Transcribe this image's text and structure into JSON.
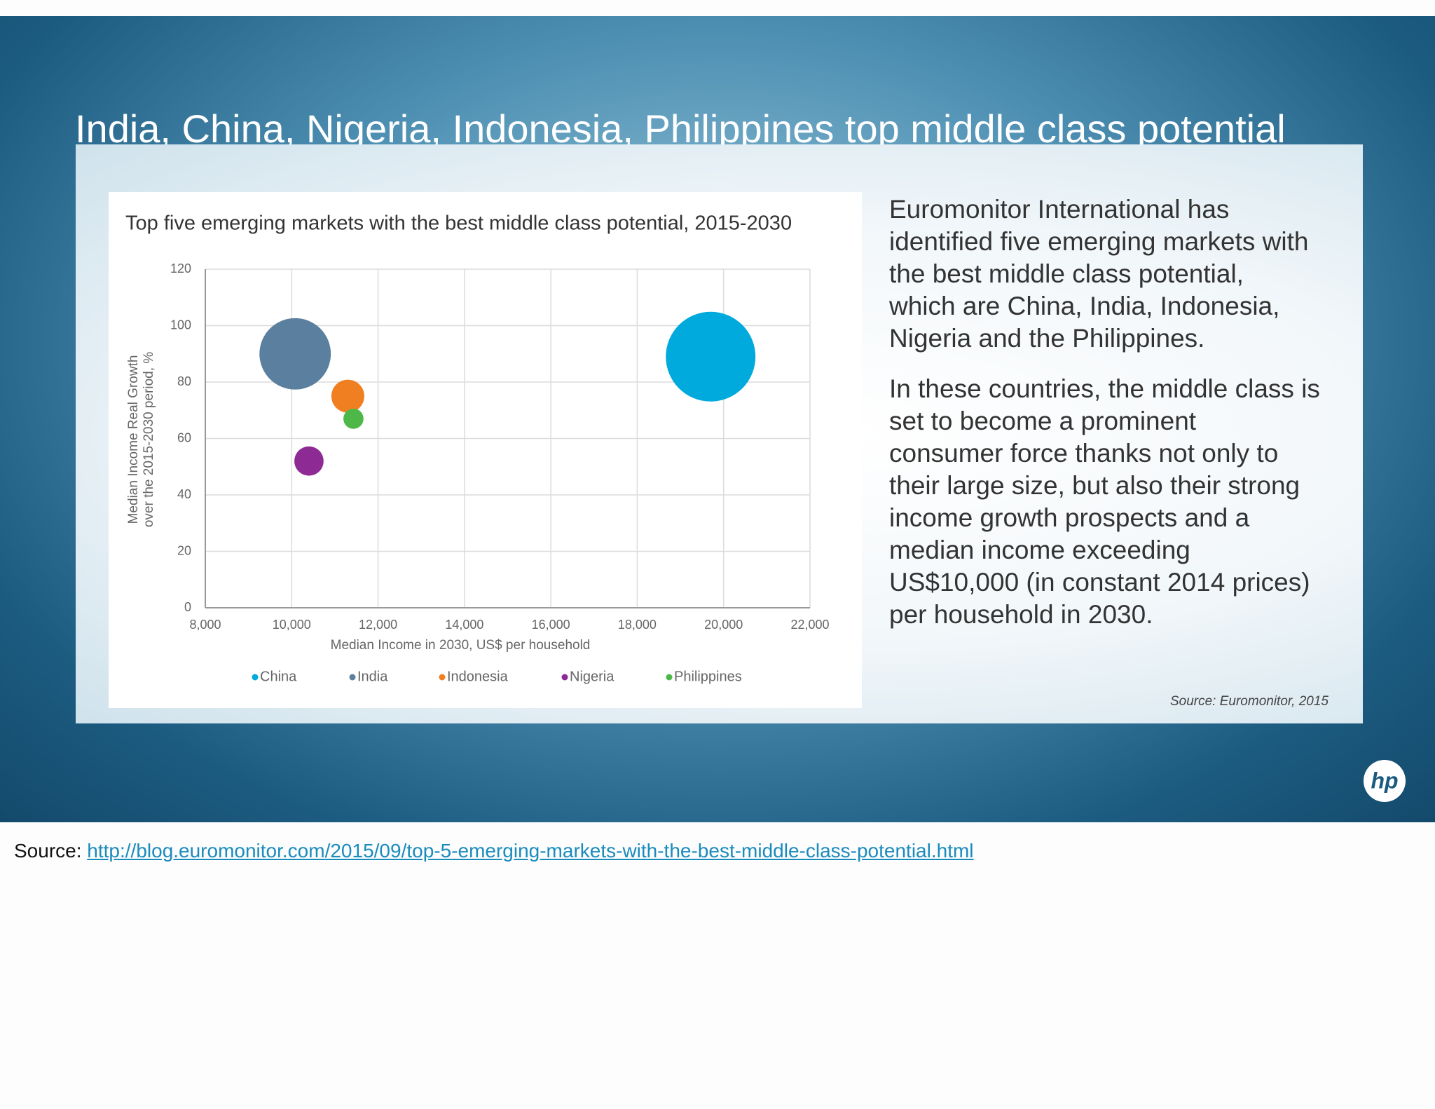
{
  "header": {
    "title": "India, China, Nigeria, Indonesia, Philippines top middle class potential"
  },
  "chart_data": {
    "type": "bubble",
    "title": "Top five emerging markets with the best middle class potential, 2015-2030",
    "x_label": "Median Income in 2030, US$ per household",
    "y_label": [
      "Median Income Real Growth",
      "over the 2015-2030 period, %"
    ],
    "xlim": [
      8000,
      22000
    ],
    "xticks": [
      {
        "value": 8000,
        "label": "8,000"
      },
      {
        "value": 10000,
        "label": "10,000"
      },
      {
        "value": 12000,
        "label": "12,000"
      },
      {
        "value": 14000,
        "label": "14,000"
      },
      {
        "value": 16000,
        "label": "16,000"
      },
      {
        "value": 18000,
        "label": "18,000"
      },
      {
        "value": 20000,
        "label": "20,000"
      },
      {
        "value": 22000,
        "label": "22,000"
      }
    ],
    "ylim": [
      0,
      120
    ],
    "yticks": [
      0,
      20,
      40,
      60,
      80,
      100,
      120
    ],
    "grid": true,
    "legend": "bottom",
    "series": [
      {
        "name": "China",
        "color": "#00aadd",
        "x": [
          19700
        ],
        "values": [
          89
        ],
        "sizes": [
          2401
        ]
      },
      {
        "name": "India",
        "color": "#5b7f9e",
        "x": [
          10080
        ],
        "values": [
          90
        ],
        "sizes": [
          1521
        ]
      },
      {
        "name": "Indonesia",
        "color": "#f07f22",
        "x": [
          11300
        ],
        "values": [
          75
        ],
        "sizes": [
          324
        ]
      },
      {
        "name": "Nigeria",
        "color": "#8e2a94",
        "x": [
          10400
        ],
        "values": [
          52
        ],
        "sizes": [
          256
        ]
      },
      {
        "name": "Philippines",
        "color": "#4db848",
        "x": [
          11430
        ],
        "values": [
          67
        ],
        "sizes": [
          121
        ]
      }
    ]
  },
  "body": {
    "paragraphs": [
      [
        "Euromonitor International has",
        "identified five emerging markets with",
        "the best middle class potential,",
        "which are China, India, Indonesia,",
        "Nigeria and the Philippines."
      ],
      [
        "In these countries, the middle class is",
        "set to become a prominent",
        "consumer force thanks not only to",
        "their large size, but also their strong",
        "income growth prospects and a",
        "median income exceeding",
        "US$10,000 (in constant 2014 prices)",
        "per household in 2030."
      ]
    ],
    "source": "Source: Euromonitor, 2015"
  },
  "logo": "hp",
  "footer": {
    "label": "Source:",
    "link": "http://blog.euromonitor.com/2015/09/top-5-emerging-markets-with-the-best-middle-class-potential.html"
  }
}
